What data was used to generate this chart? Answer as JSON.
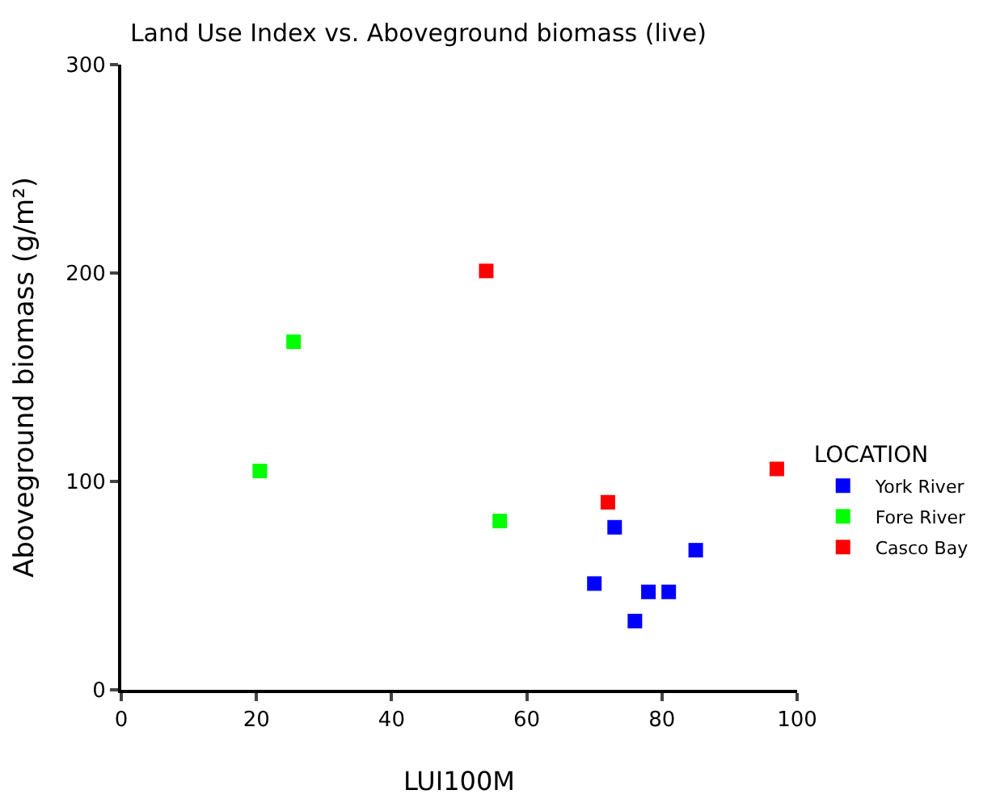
{
  "chart_data": {
    "type": "scatter",
    "title": "Land Use Index vs. Aboveground biomass (live)",
    "xlabel": "LUI100M",
    "ylabel": "Aboveground biomass (g/m²)",
    "legend_title": "LOCATION",
    "legend": "right",
    "marker": "square",
    "xlim": [
      0,
      100
    ],
    "xticks": [
      0,
      20,
      40,
      60,
      80,
      100
    ],
    "ylim": [
      0,
      300
    ],
    "yticks": [
      0,
      100,
      200,
      300
    ],
    "series": [
      {
        "name": "York River",
        "color": "#0000ff",
        "x": [
          70,
          73,
          76,
          78,
          81,
          85
        ],
        "values": [
          51,
          78,
          33,
          47,
          47,
          67
        ]
      },
      {
        "name": "Fore River",
        "color": "#00ff00",
        "x": [
          20.5,
          25.5,
          56
        ],
        "values": [
          105,
          167,
          81
        ]
      },
      {
        "name": "Casco Bay",
        "color": "#ff0000",
        "x": [
          54,
          72,
          97
        ],
        "values": [
          201,
          90,
          106
        ]
      }
    ]
  }
}
